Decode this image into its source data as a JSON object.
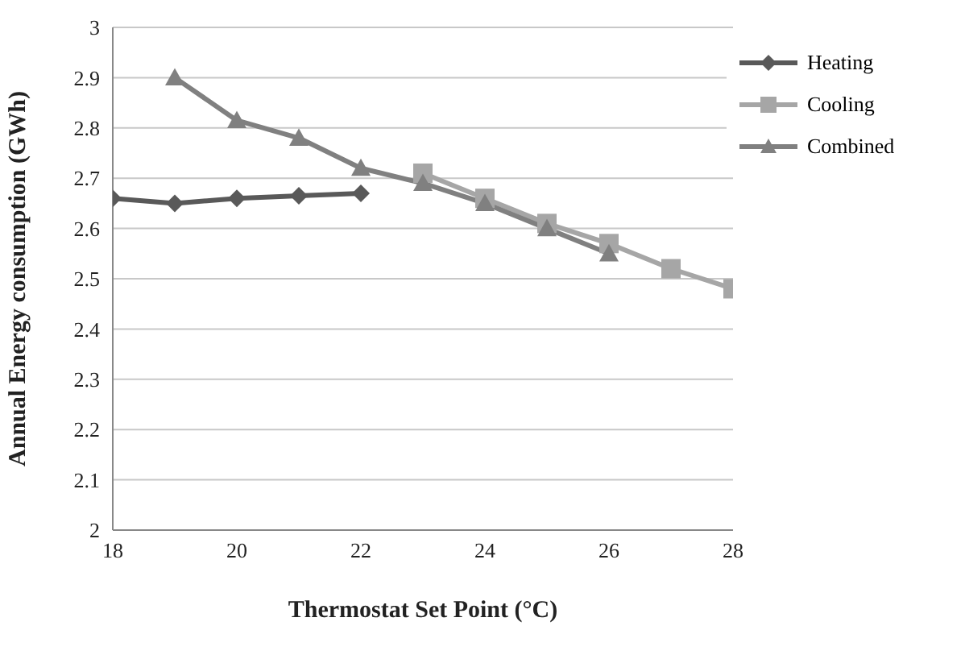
{
  "chart_data": {
    "type": "line",
    "xlabel": "Thermostat Set Point (°C)",
    "ylabel": "Annual Energy consumption (GWh)",
    "xlim": [
      18,
      28
    ],
    "xticks": [
      18,
      20,
      22,
      24,
      26,
      28
    ],
    "ylim": [
      2,
      3
    ],
    "yticks": [
      2,
      2.1,
      2.2,
      2.3,
      2.4,
      2.5,
      2.6,
      2.7,
      2.8,
      2.9,
      3
    ],
    "grid": "y",
    "legend": "top right",
    "line_style": "solid",
    "series": [
      {
        "name": "Heating",
        "color": "#595959",
        "marker": "diamond",
        "x": [
          18,
          19,
          20,
          21,
          22
        ],
        "values": [
          2.66,
          2.65,
          2.66,
          2.665,
          2.67
        ]
      },
      {
        "name": "Cooling",
        "color": "#a6a6a6",
        "marker": "square",
        "x": [
          23,
          24,
          25,
          26,
          27,
          28
        ],
        "values": [
          2.71,
          2.66,
          2.61,
          2.57,
          2.52,
          2.48
        ]
      },
      {
        "name": "Combined",
        "color": "#808080",
        "marker": "triangle",
        "x": [
          19,
          20,
          21,
          22,
          23,
          24,
          25,
          26
        ],
        "values": [
          2.9,
          2.815,
          2.78,
          2.72,
          2.69,
          2.65,
          2.6,
          2.55
        ]
      }
    ]
  }
}
